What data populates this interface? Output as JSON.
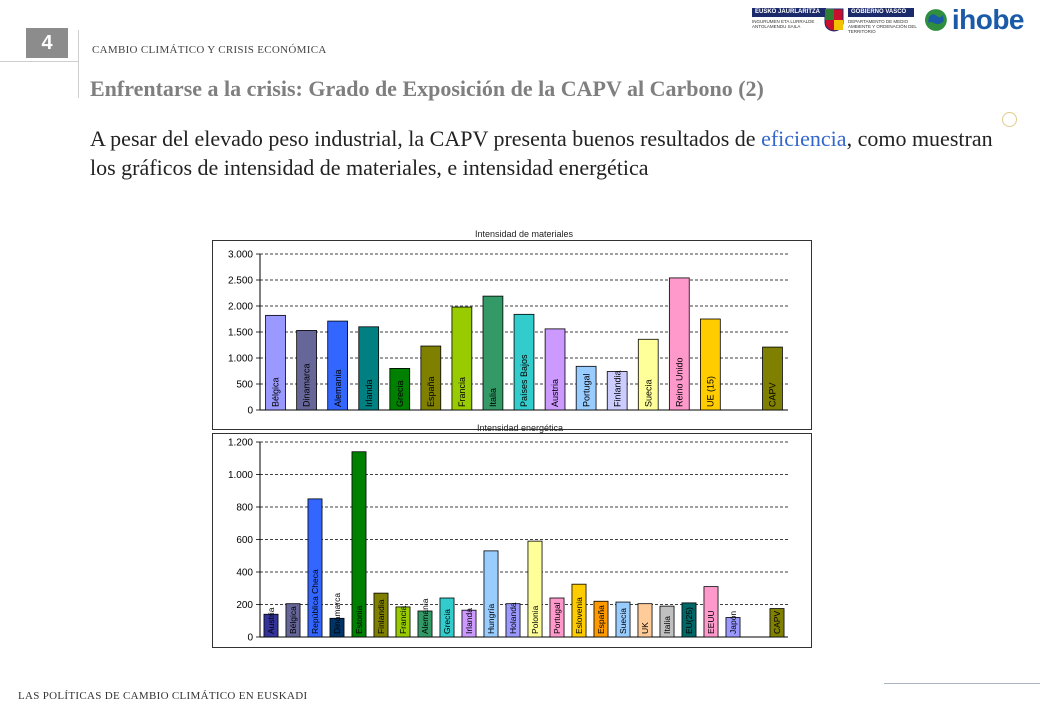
{
  "header": {
    "slide_number": "4",
    "section": "CAMBIO CLIMÁTICO Y CRISIS ECONÓMICA",
    "title": "Enfrentarse a la crisis: Grado de Exposición de la CAPV al Carbono (2)",
    "subtitle_part1": "A pesar del elevado peso industrial, la CAPV presenta buenos resultados de ",
    "subtitle_highlight": "eficiencia",
    "subtitle_part2": ", como muestran los gráficos de intensidad de materiales, e intensidad energética"
  },
  "logos": {
    "gv_left": "EUSKO JAURLARITZA",
    "gv_right": "GOBIERNO VASCO",
    "gv_left_small": "INGURUMEN ETA LURRALDE ANTOLAMENDU SAILA",
    "gv_right_small": "DEPARTAMENTO DE MEDIO AMBIENTE Y ORDENACIÓN DEL TERRITORIO",
    "ihobe": "ihobe"
  },
  "footer": {
    "text": "LAS POLÍTICAS DE CAMBIO CLIMÁTICO EN EUSKADI"
  },
  "chart_data": [
    {
      "type": "bar",
      "title": "Intensidad de materiales",
      "ylim": [
        0,
        3000
      ],
      "yticks": [
        0,
        500,
        1000,
        1500,
        2000,
        2500,
        3000
      ],
      "ytick_labels": [
        "0",
        "500",
        "1.000",
        "1.500",
        "2.000",
        "2.500",
        "3.000"
      ],
      "grid": true,
      "categories": [
        "Bélgica",
        "Dinamarca",
        "Alemania",
        "Irlanda",
        "Grecia",
        "España",
        "Francia",
        "Italia",
        "Países Bajos",
        "Austria",
        "Portugal",
        "Finlandia",
        "Suecia",
        "Reino Unido",
        "UE (15)",
        "",
        "CAPV"
      ],
      "values": [
        1820,
        1530,
        1710,
        1600,
        800,
        1230,
        1980,
        2190,
        1840,
        1560,
        840,
        740,
        1360,
        2540,
        1750,
        null,
        1210
      ],
      "colors": [
        "#9999ff",
        "#666699",
        "#3366ff",
        "#008080",
        "#008000",
        "#808000",
        "#99cc00",
        "#339966",
        "#33cccc",
        "#cc99ff",
        "#99ccff",
        "#ccccff",
        "#ffff99",
        "#ff99cc",
        "#ffcc00",
        "#ffffff",
        "#808000"
      ]
    },
    {
      "type": "bar",
      "title": "Intensidad energética",
      "ylim": [
        0,
        1200
      ],
      "yticks": [
        0,
        200,
        400,
        600,
        800,
        1000,
        1200
      ],
      "ytick_labels": [
        "0",
        "200",
        "400",
        "600",
        "800",
        "1.000",
        "1.200"
      ],
      "grid": true,
      "categories": [
        "Austria",
        "Bélgica",
        "República Checa",
        "Dinamarca",
        "Estonia",
        "Finlandia",
        "Francia",
        "Alemania",
        "Grecia",
        "Irlanda",
        "Hungría",
        "Holanda",
        "Polonia",
        "Portugal",
        "Eslovenia",
        "España",
        "Suecia",
        "UK",
        "Italia",
        "EU(25)",
        "EEUU",
        "Japón",
        "",
        "CAPV"
      ],
      "values": [
        140,
        205,
        850,
        115,
        1140,
        270,
        185,
        160,
        240,
        165,
        530,
        205,
        590,
        240,
        325,
        220,
        215,
        205,
        190,
        210,
        310,
        120,
        null,
        175
      ],
      "colors": [
        "#333399",
        "#666699",
        "#3366ff",
        "#003366",
        "#008000",
        "#808000",
        "#99cc00",
        "#339966",
        "#33cccc",
        "#cc99ff",
        "#99ccff",
        "#9999ff",
        "#ffff99",
        "#ff99cc",
        "#ffcc00",
        "#ff9900",
        "#99ccff",
        "#ffcc99",
        "#c0c0c0",
        "#006666",
        "#ff99cc",
        "#9999ff",
        "#ffffff",
        "#808000"
      ]
    }
  ]
}
